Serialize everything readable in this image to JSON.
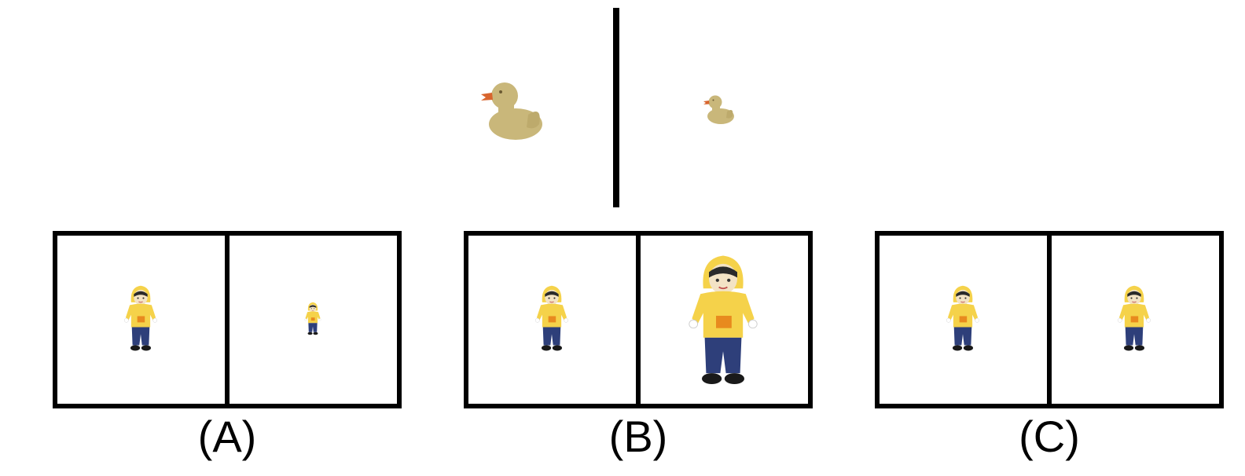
{
  "options": [
    {
      "label": "(A)"
    },
    {
      "label": "(B)"
    },
    {
      "label": "(C)"
    }
  ],
  "icons": {
    "duck": "rubber-duck-icon",
    "doll": "doll-yellow-hoodie-icon"
  },
  "colors": {
    "duck_body": "#C9B77A",
    "duck_beak": "#D8652E",
    "hoodie": "#F5D24A",
    "pocket": "#E88A1E",
    "jeans": "#2E3F7A",
    "shoes": "#1A1A1A",
    "face": "#F3E3C5"
  }
}
